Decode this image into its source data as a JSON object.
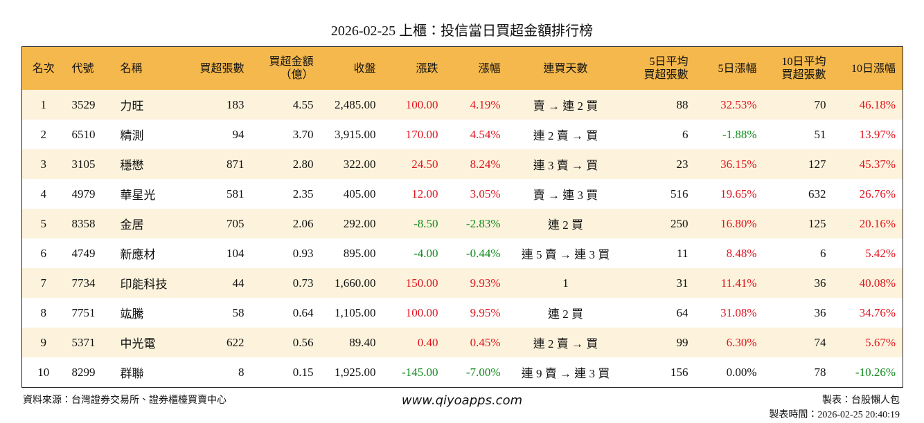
{
  "header": {
    "title": "2026-02-25 上櫃：投信當日買超金額排行榜"
  },
  "table": {
    "columns": [
      "名次",
      "代號",
      "名稱",
      "買超張數",
      "買超金額\n（億）",
      "收盤",
      "漲跌",
      "漲幅",
      "連買天數",
      "5日平均\n買超張數",
      "5日漲幅",
      "10日平均\n買超張數",
      "10日漲幅"
    ],
    "rows": [
      [
        "1",
        "3529",
        "力旺",
        "183",
        "4.55",
        "2,485.00",
        "100.00",
        "4.19%",
        "賣 → 連 2 買",
        "88",
        "32.53%",
        "70",
        "46.18%"
      ],
      [
        "2",
        "6510",
        "精測",
        "94",
        "3.70",
        "3,915.00",
        "170.00",
        "4.54%",
        "連 2 賣 → 買",
        "6",
        "-1.88%",
        "51",
        "13.97%"
      ],
      [
        "3",
        "3105",
        "穩懋",
        "871",
        "2.80",
        "322.00",
        "24.50",
        "8.24%",
        "連 3 賣 → 買",
        "23",
        "36.15%",
        "127",
        "45.37%"
      ],
      [
        "4",
        "4979",
        "華星光",
        "581",
        "2.35",
        "405.00",
        "12.00",
        "3.05%",
        "賣 → 連 3 買",
        "516",
        "19.65%",
        "632",
        "26.76%"
      ],
      [
        "5",
        "8358",
        "金居",
        "705",
        "2.06",
        "292.00",
        "-8.50",
        "-2.83%",
        "連 2 買",
        "250",
        "16.80%",
        "125",
        "20.16%"
      ],
      [
        "6",
        "4749",
        "新應材",
        "104",
        "0.93",
        "895.00",
        "-4.00",
        "-0.44%",
        "連 5 賣 → 連 3 買",
        "11",
        "8.48%",
        "6",
        "5.42%"
      ],
      [
        "7",
        "7734",
        "印能科技",
        "44",
        "0.73",
        "1,660.00",
        "150.00",
        "9.93%",
        "1",
        "31",
        "11.41%",
        "36",
        "40.08%"
      ],
      [
        "8",
        "7751",
        "竑騰",
        "58",
        "0.64",
        "1,105.00",
        "100.00",
        "9.95%",
        "連 2 買",
        "64",
        "31.08%",
        "36",
        "34.76%"
      ],
      [
        "9",
        "5371",
        "中光電",
        "622",
        "0.56",
        "89.40",
        "0.40",
        "0.45%",
        "連 2 賣 → 買",
        "99",
        "6.30%",
        "74",
        "5.67%"
      ],
      [
        "10",
        "8299",
        "群聯",
        "8",
        "0.15",
        "1,925.00",
        "-145.00",
        "-7.00%",
        "連 9 賣 → 連 3 買",
        "156",
        "0.00%",
        "78",
        "-10.26%"
      ]
    ]
  },
  "footer": {
    "source": "資料來源：台灣證券交易所、證券櫃檯買賣中心",
    "website": "www.qiyoapps.com",
    "author": "製表：台股懶人包",
    "timestamp": "製表時間：2026-02-25 20:40:19"
  }
}
